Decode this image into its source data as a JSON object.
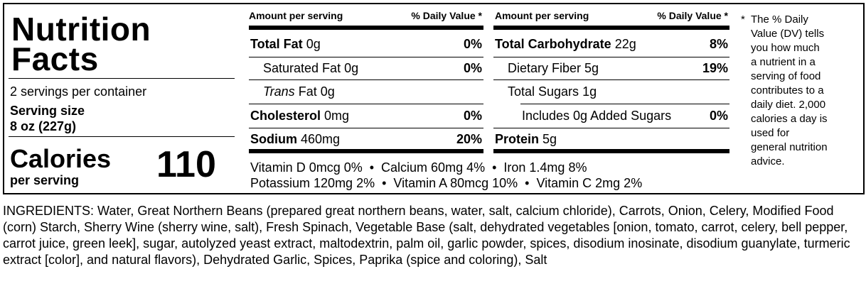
{
  "label": {
    "title_line1": "Nutrition",
    "title_line2": "Facts",
    "servings": "2 servings per container",
    "serving_size_label": "Serving size",
    "serving_size_value": "8 oz (227g)",
    "calories_label": "Calories",
    "calories_per": "per serving",
    "calories_value": "110"
  },
  "col_headers": {
    "amount": "Amount per serving",
    "daily": "% Daily Value *"
  },
  "left_rows": {
    "total_fat": {
      "name": "Total Fat",
      "amount": "0g",
      "dv": "0%"
    },
    "sat_fat": {
      "name": "Saturated Fat",
      "amount": "0g",
      "dv": "0%"
    },
    "trans_fat": {
      "name_italic": "Trans",
      "name_rest": "Fat",
      "amount": "0g"
    },
    "cholesterol": {
      "name": "Cholesterol",
      "amount": "0mg",
      "dv": "0%"
    },
    "sodium": {
      "name": "Sodium",
      "amount": "460mg",
      "dv": "20%"
    }
  },
  "right_rows": {
    "total_carb": {
      "name": "Total Carbohydrate",
      "amount": "22g",
      "dv": "8%"
    },
    "fiber": {
      "name": "Dietary Fiber",
      "amount": "5g",
      "dv": "19%"
    },
    "sugars": {
      "name": "Total Sugars",
      "amount": "1g"
    },
    "added_sugars": {
      "name": "Includes 0g Added Sugars",
      "dv": "0%"
    },
    "protein": {
      "name": "Protein",
      "amount": "5g"
    }
  },
  "vitamins": {
    "line1": "Vitamin D 0mcg 0%  •  Calcium 60mg 4%  •  Iron 1.4mg 8%",
    "line2": "Potassium 120mg 2%  •  Vitamin A 80mcg 10%  •  Vitamin C 2mg 2%"
  },
  "footnote": {
    "star": "*",
    "lines": [
      "The % Daily",
      "Value (DV) tells",
      "you how much",
      "a nutrient in a",
      "serving of food",
      "contributes to a",
      "daily diet. 2,000",
      "calories a day is",
      "used for",
      "general nutrition",
      "advice."
    ]
  },
  "ingredients": "INGREDIENTS: Water, Great Northern Beans (prepared great northern beans, water, salt, calcium chloride), Carrots, Onion, Celery, Modified Food (corn) Starch, Sherry  Wine (sherry wine, salt), Fresh Spinach, Vegetable Base (salt, dehydrated vegetables [onion, tomato, carrot, celery, bell pepper, carrot juice, green leek], sugar, autolyzed yeast extract, maltodextrin, palm oil, garlic powder, spices, disodium inosinate, disodium guanylate, turmeric extract [color], and natural flavors), Dehydrated Garlic, Spices, Paprika (spice and coloring), Salt"
}
